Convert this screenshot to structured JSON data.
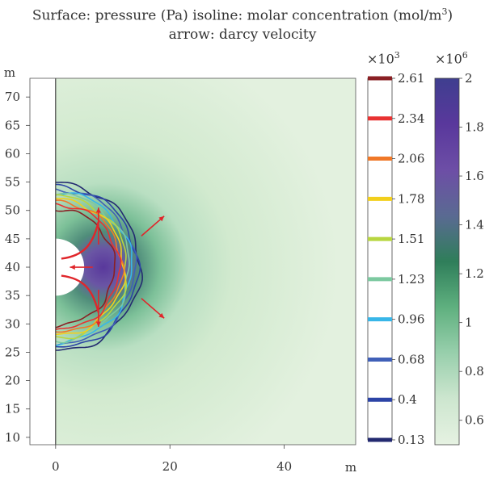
{
  "title_line1": "Surface: pressure (Pa) isoline: molar concentration (mol/m",
  "title_line1_sup": "3",
  "title_line1_tail": ")",
  "title_line2": "arrow: darcy velocity",
  "chart_data": {
    "type": "heatmap",
    "title": "Surface: pressure (Pa) isoline: molar concentration (mol/m3) arrow: darcy velocity",
    "xlabel": "m",
    "ylabel": "m",
    "xlim": [
      -4.5,
      52.5
    ],
    "ylim": [
      8.7,
      73.3
    ],
    "x_ticks": [
      0,
      20,
      40
    ],
    "y_ticks": [
      10,
      15,
      20,
      25,
      30,
      35,
      40,
      45,
      50,
      55,
      60,
      65,
      70
    ],
    "cavity": {
      "center": [
        0,
        40
      ],
      "radius": 5
    },
    "surface": {
      "name": "pressure (Pa)",
      "multiplier_label": "×10",
      "multiplier_exp": "6",
      "range": [
        0.5,
        2.0
      ],
      "ticks": [
        0.6,
        0.8,
        1,
        1.2,
        1.4,
        1.6,
        1.8,
        2
      ],
      "colors": [
        "#e6f2e2",
        "#cde6cf",
        "#98cfac",
        "#5fb07f",
        "#2f7e5a",
        "#5a6a92",
        "#6d4ea6",
        "#59389c",
        "#3f3e8f"
      ]
    },
    "isolines": {
      "name": "molar concentration (mol/m3)",
      "multiplier_label": "×10",
      "multiplier_exp": "3",
      "levels": [
        {
          "value": 0.13,
          "label": "0.13",
          "color": "#232a70",
          "radius": 14.8
        },
        {
          "value": 0.4,
          "label": "0.4",
          "color": "#2c44a6",
          "radius": 14.3
        },
        {
          "value": 0.68,
          "label": "0.68",
          "color": "#4060b8",
          "radius": 13.8
        },
        {
          "value": 0.96,
          "label": "0.96",
          "color": "#38b6e8",
          "radius": 13.3
        },
        {
          "value": 1.23,
          "label": "1.23",
          "color": "#7cc9a0",
          "radius": 12.9
        },
        {
          "value": 1.51,
          "label": "1.51",
          "color": "#b8d640",
          "radius": 12.5
        },
        {
          "value": 1.78,
          "label": "1.78",
          "color": "#f2cf1c",
          "radius": 12.0
        },
        {
          "value": 2.06,
          "label": "2.06",
          "color": "#f07828",
          "radius": 11.6
        },
        {
          "value": 2.34,
          "label": "2.34",
          "color": "#e83232",
          "radius": 11.1
        },
        {
          "value": 2.61,
          "label": "2.61",
          "color": "#8a2024",
          "radius": 10.3
        }
      ]
    },
    "arrows": {
      "name": "darcy velocity",
      "color": "#e0262b",
      "vectors": [
        {
          "from": [
            15,
            45.5
          ],
          "to": [
            19,
            49
          ]
        },
        {
          "from": [
            15,
            34.5
          ],
          "to": [
            19,
            31
          ]
        },
        {
          "from": [
            7.5,
            44
          ],
          "to": [
            7.5,
            50.5
          ]
        },
        {
          "from": [
            7.5,
            36
          ],
          "to": [
            7.5,
            29.5
          ]
        },
        {
          "from": [
            6.5,
            40
          ],
          "to": [
            2.5,
            40
          ]
        }
      ]
    }
  }
}
